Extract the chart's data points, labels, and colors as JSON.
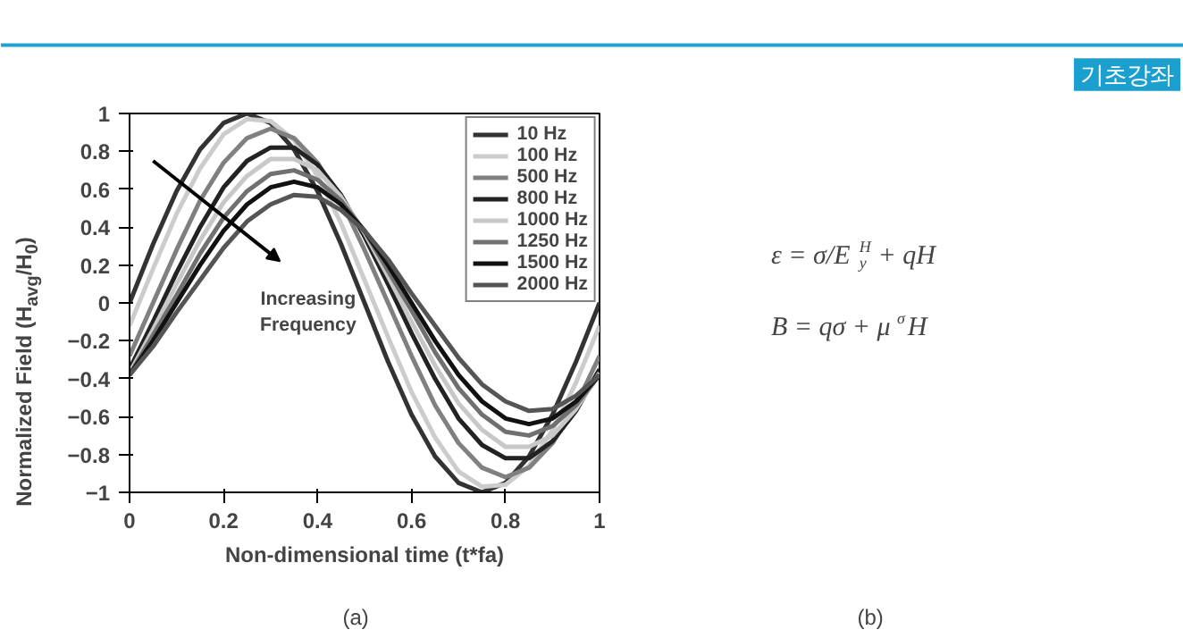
{
  "chart_data": {
    "type": "line",
    "xlabel": "Non-dimensional time (t*fa)",
    "ylabel": "Normalized Field (H$_{avg}$/H$_{0}$)",
    "x": [
      0,
      0.05,
      0.1,
      0.15,
      0.2,
      0.25,
      0.3,
      0.35,
      0.4,
      0.45,
      0.5,
      0.55,
      0.6,
      0.65,
      0.7,
      0.75,
      0.8,
      0.85,
      0.9,
      0.95,
      1
    ],
    "xlim": [
      0,
      1
    ],
    "ylim": [
      -1,
      1
    ],
    "xticks": [
      0,
      0.2,
      0.4,
      0.6,
      0.8,
      1
    ],
    "yticks": [
      -1,
      -0.8,
      -0.6,
      -0.4,
      -0.2,
      0,
      0.2,
      0.4,
      0.6,
      0.8,
      1
    ],
    "grid": false,
    "legend": "top right",
    "marker": "none",
    "line_style": "solid",
    "series": [
      {
        "name": "10 Hz",
        "color": "#333333",
        "values": [
          0,
          0.31,
          0.59,
          0.81,
          0.95,
          1,
          0.95,
          0.81,
          0.59,
          0.31,
          0,
          -0.31,
          -0.59,
          -0.81,
          -0.95,
          -1,
          -0.95,
          -0.81,
          -0.59,
          -0.31,
          0
        ]
      },
      {
        "name": "100 Hz",
        "color": "#cccccc",
        "values": [
          -0.12,
          0.18,
          0.47,
          0.71,
          0.89,
          0.97,
          0.96,
          0.86,
          0.67,
          0.42,
          0.12,
          -0.18,
          -0.47,
          -0.71,
          -0.89,
          -0.97,
          -0.96,
          -0.86,
          -0.67,
          -0.42,
          -0.12
        ]
      },
      {
        "name": "500 Hz",
        "color": "#808080",
        "values": [
          -0.28,
          0,
          0.28,
          0.54,
          0.74,
          0.87,
          0.92,
          0.87,
          0.74,
          0.54,
          0.28,
          0,
          -0.28,
          -0.54,
          -0.74,
          -0.87,
          -0.92,
          -0.87,
          -0.74,
          -0.54,
          -0.28
        ]
      },
      {
        "name": "800 Hz",
        "color": "#222222",
        "values": [
          -0.35,
          -0.1,
          0.16,
          0.4,
          0.61,
          0.75,
          0.82,
          0.82,
          0.73,
          0.57,
          0.35,
          0.1,
          -0.16,
          -0.4,
          -0.61,
          -0.75,
          -0.82,
          -0.82,
          -0.73,
          -0.57,
          -0.35
        ]
      },
      {
        "name": "1000 Hz",
        "color": "#c8c8c8",
        "values": [
          -0.37,
          -0.14,
          0.1,
          0.33,
          0.53,
          0.67,
          0.76,
          0.76,
          0.7,
          0.56,
          0.37,
          0.14,
          -0.1,
          -0.33,
          -0.53,
          -0.67,
          -0.76,
          -0.76,
          -0.7,
          -0.56,
          -0.37
        ]
      },
      {
        "name": "1250 Hz",
        "color": "#707070",
        "values": [
          -0.38,
          -0.17,
          0.04,
          0.26,
          0.45,
          0.59,
          0.68,
          0.7,
          0.65,
          0.54,
          0.38,
          0.17,
          -0.04,
          -0.26,
          -0.45,
          -0.59,
          -0.68,
          -0.7,
          -0.65,
          -0.54,
          -0.38
        ]
      },
      {
        "name": "1500 Hz",
        "color": "#111111",
        "values": [
          -0.38,
          -0.2,
          0,
          0.2,
          0.38,
          0.52,
          0.61,
          0.64,
          0.61,
          0.52,
          0.38,
          0.2,
          0,
          -0.2,
          -0.38,
          -0.52,
          -0.61,
          -0.64,
          -0.61,
          -0.52,
          -0.38
        ]
      },
      {
        "name": "2000 Hz",
        "color": "#555555",
        "values": [
          -0.38,
          -0.23,
          -0.05,
          0.12,
          0.29,
          0.43,
          0.52,
          0.57,
          0.56,
          0.49,
          0.38,
          0.23,
          0.05,
          -0.12,
          -0.29,
          -0.43,
          -0.52,
          -0.57,
          -0.56,
          -0.49,
          -0.38
        ]
      }
    ],
    "annotations": [
      "기초강좌",
      "Increasing\nFrequency",
      "ε = σ/E$_{y}$$^{H}$ + qH",
      "B = qσ + μ$^{σ}$H",
      "(a)",
      "(b)"
    ]
  }
}
